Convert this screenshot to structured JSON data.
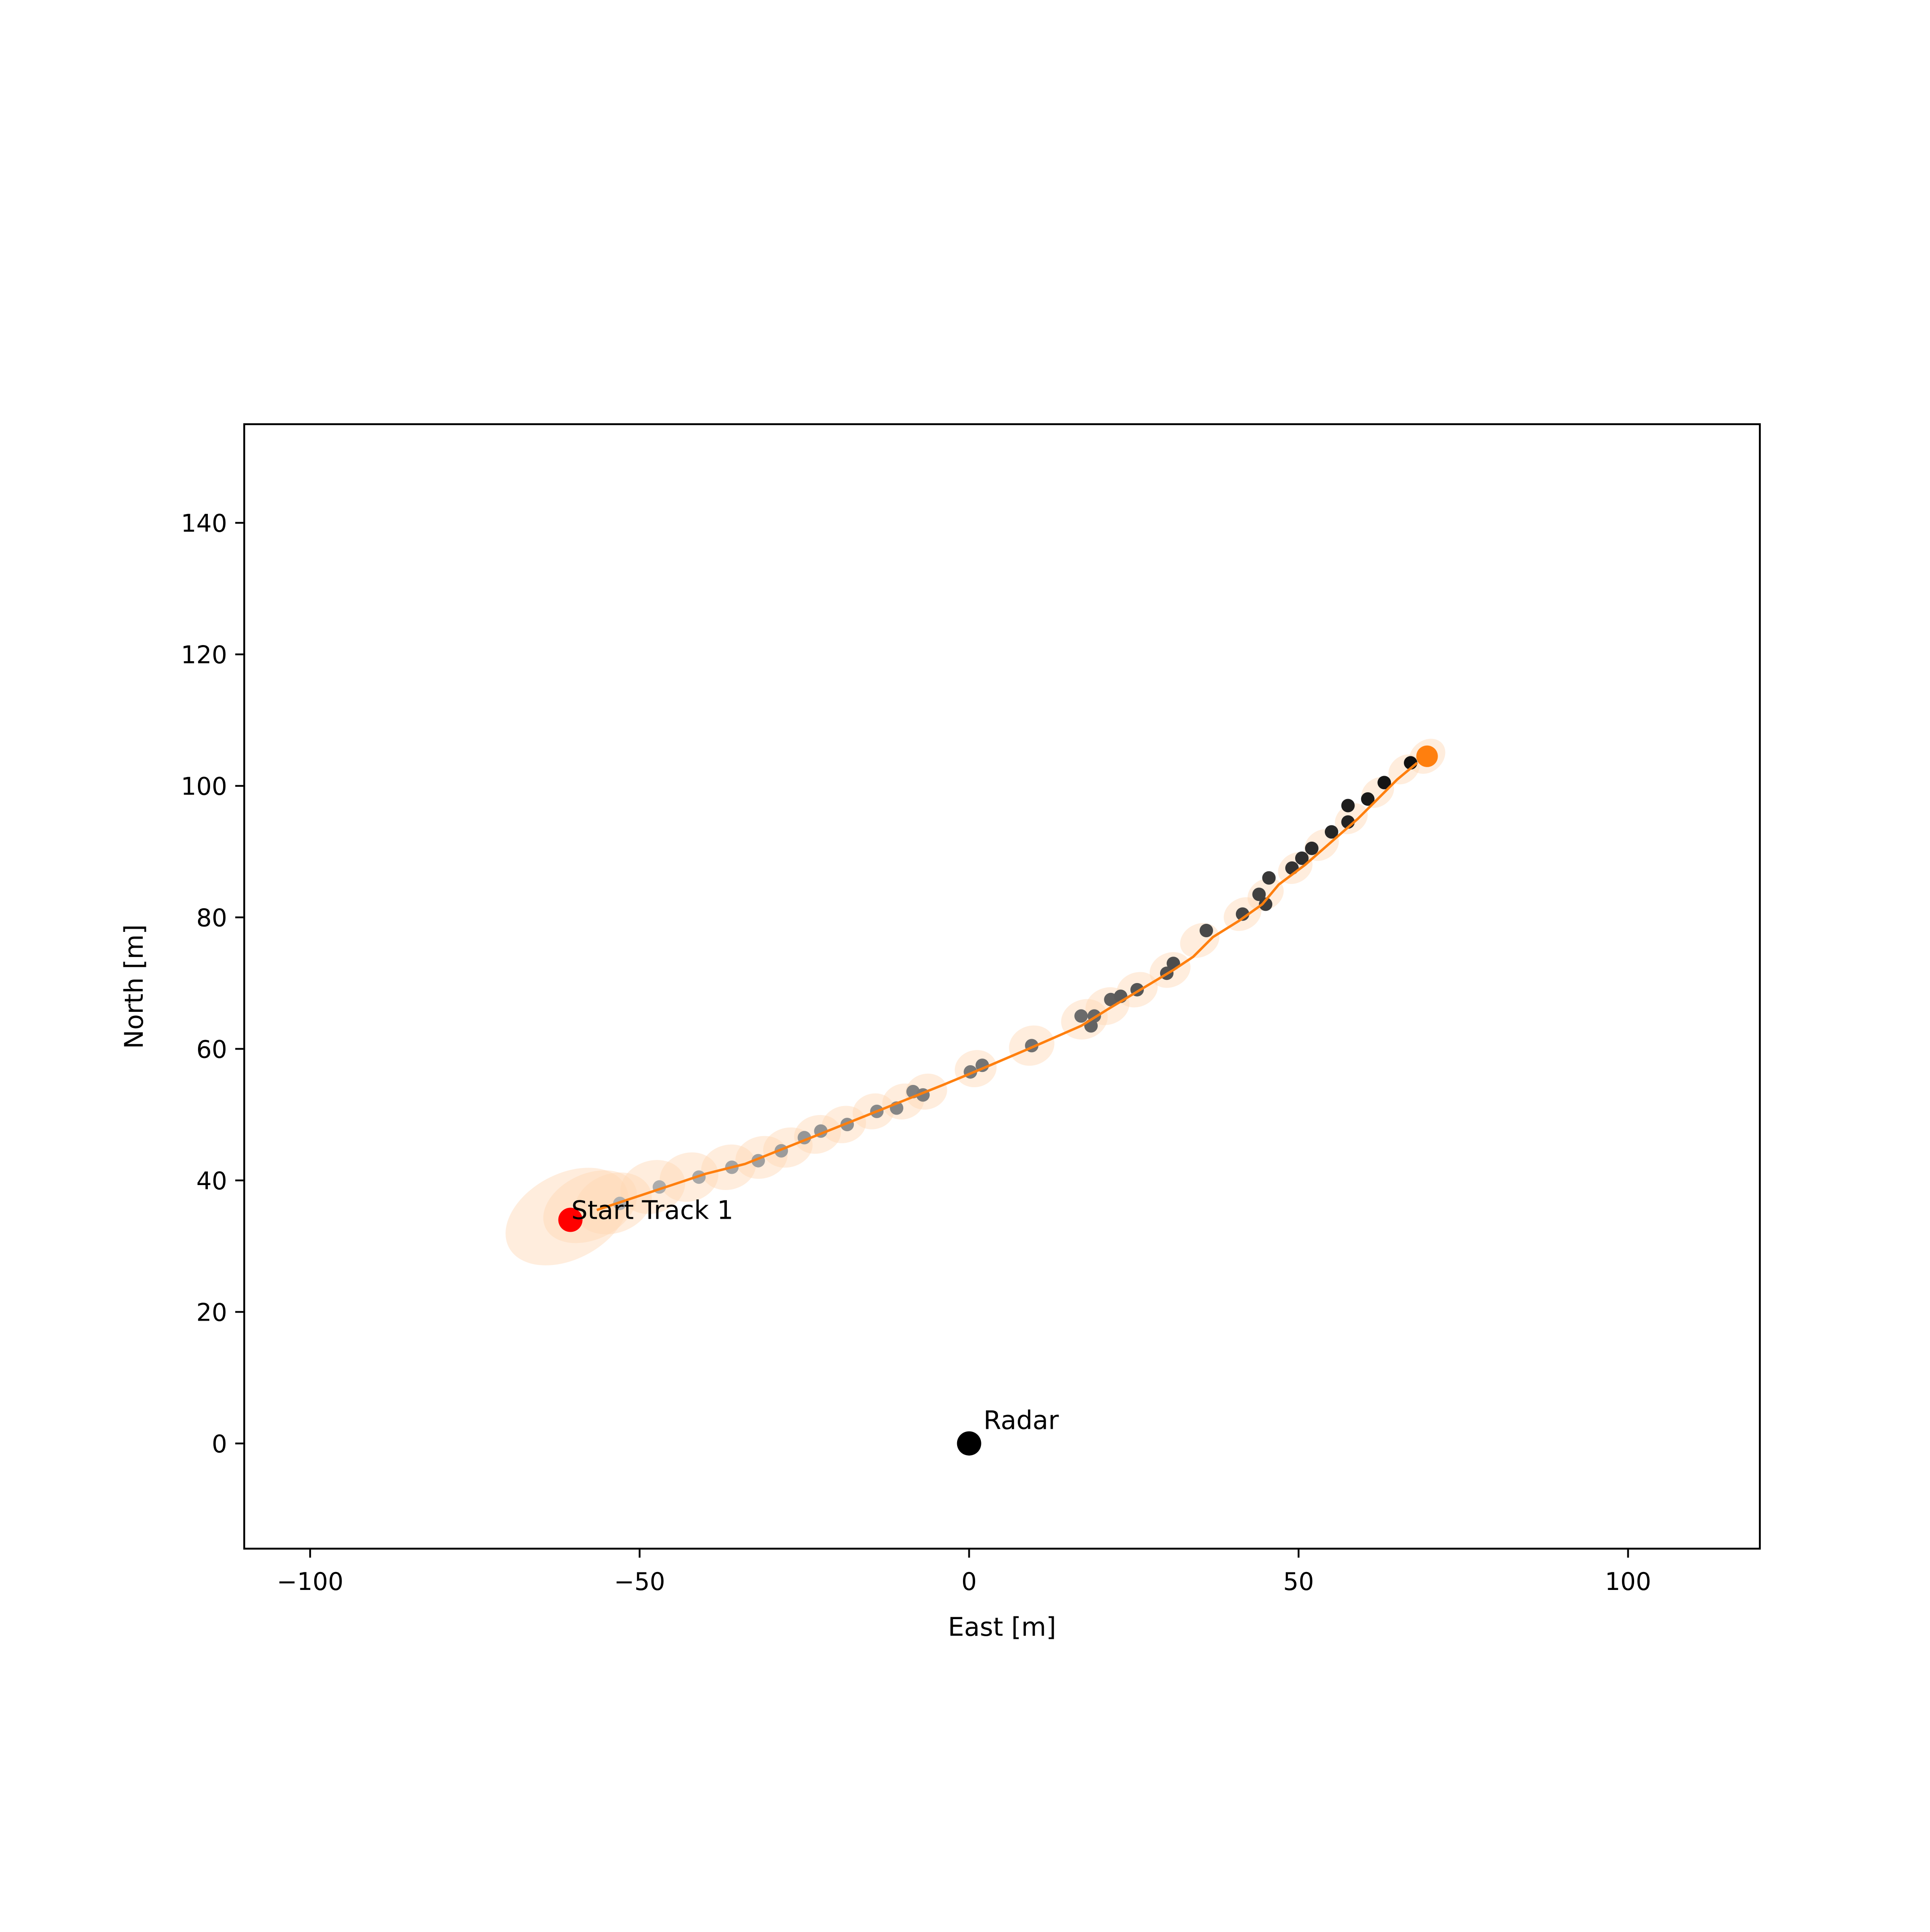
{
  "chart_data": {
    "type": "scatter",
    "title": "",
    "xlabel": "East [m]",
    "ylabel": "North [m]",
    "xlim": [
      -110,
      120
    ],
    "ylim": [
      -16,
      155
    ],
    "xticks": [
      -100,
      -50,
      0,
      50,
      100
    ],
    "xtick_labels": [
      "−100",
      "−50",
      "0",
      "50",
      "100"
    ],
    "yticks": [
      0,
      20,
      40,
      60,
      80,
      100,
      120,
      140
    ],
    "ytick_labels": [
      "0",
      "20",
      "40",
      "60",
      "80",
      "100",
      "120",
      "140"
    ],
    "grid": false,
    "legend": "none",
    "colors": {
      "track": "#ff7f0e",
      "ellipse": "#ffd7b4",
      "start": "#ff0000",
      "radar": "#000000",
      "measurement_early": "#b0b0b0",
      "measurement_late": "#111111"
    },
    "radar": {
      "x": 0,
      "y": 0,
      "label": "Radar"
    },
    "track_start": {
      "x": -60.5,
      "y": 34,
      "label": "Start Track 1"
    },
    "track_end": {
      "x": 69.5,
      "y": 104.5
    },
    "measurements": [
      {
        "x": -53,
        "y": 36.5
      },
      {
        "x": -47,
        "y": 39
      },
      {
        "x": -41,
        "y": 40.5
      },
      {
        "x": -36,
        "y": 42
      },
      {
        "x": -32,
        "y": 43
      },
      {
        "x": -28.5,
        "y": 44.5
      },
      {
        "x": -25,
        "y": 46.5
      },
      {
        "x": -22.5,
        "y": 47.5
      },
      {
        "x": -18.5,
        "y": 48.5
      },
      {
        "x": -14,
        "y": 50.5
      },
      {
        "x": -11,
        "y": 51
      },
      {
        "x": -8.5,
        "y": 53.5
      },
      {
        "x": -7,
        "y": 53
      },
      {
        "x": 0.2,
        "y": 56.5
      },
      {
        "x": 2,
        "y": 57.5
      },
      {
        "x": 9.5,
        "y": 60.5
      },
      {
        "x": 17,
        "y": 65
      },
      {
        "x": 19,
        "y": 65
      },
      {
        "x": 18.5,
        "y": 63.5
      },
      {
        "x": 21.5,
        "y": 67.5
      },
      {
        "x": 23,
        "y": 68
      },
      {
        "x": 25.5,
        "y": 69
      },
      {
        "x": 30,
        "y": 71.5
      },
      {
        "x": 31,
        "y": 73
      },
      {
        "x": 36,
        "y": 78
      },
      {
        "x": 41.5,
        "y": 80.5
      },
      {
        "x": 44,
        "y": 83.5
      },
      {
        "x": 45,
        "y": 82
      },
      {
        "x": 45.5,
        "y": 86
      },
      {
        "x": 49,
        "y": 87.5
      },
      {
        "x": 50.5,
        "y": 89
      },
      {
        "x": 52,
        "y": 90.5
      },
      {
        "x": 55,
        "y": 93
      },
      {
        "x": 57.5,
        "y": 94.5
      },
      {
        "x": 57.5,
        "y": 97
      },
      {
        "x": 60.5,
        "y": 98
      },
      {
        "x": 63,
        "y": 100.5
      },
      {
        "x": 67,
        "y": 103.5
      }
    ],
    "track": [
      {
        "x": -56.5,
        "y": 35.5
      },
      {
        "x": -52,
        "y": 37
      },
      {
        "x": -46,
        "y": 39
      },
      {
        "x": -40,
        "y": 41
      },
      {
        "x": -34,
        "y": 42.5
      },
      {
        "x": -29,
        "y": 44.5
      },
      {
        "x": -24,
        "y": 46.5
      },
      {
        "x": -19,
        "y": 48.5
      },
      {
        "x": -14,
        "y": 50.5
      },
      {
        "x": -9,
        "y": 52.5
      },
      {
        "x": -4,
        "y": 54.5
      },
      {
        "x": 2,
        "y": 57
      },
      {
        "x": 9,
        "y": 60
      },
      {
        "x": 17,
        "y": 63.5
      },
      {
        "x": 21,
        "y": 66
      },
      {
        "x": 26,
        "y": 69
      },
      {
        "x": 31,
        "y": 72
      },
      {
        "x": 34,
        "y": 74
      },
      {
        "x": 37,
        "y": 77
      },
      {
        "x": 41,
        "y": 79.5
      },
      {
        "x": 44.5,
        "y": 82
      },
      {
        "x": 47,
        "y": 85
      },
      {
        "x": 51,
        "y": 88
      },
      {
        "x": 55,
        "y": 91.5
      },
      {
        "x": 59,
        "y": 95
      },
      {
        "x": 62,
        "y": 98
      },
      {
        "x": 65,
        "y": 101
      },
      {
        "x": 68,
        "y": 103.5
      }
    ],
    "covariance_ellipses": [
      {
        "x": -61,
        "y": 34.5,
        "rx": 10,
        "ry": 6.5,
        "angle": -28
      },
      {
        "x": -57.5,
        "y": 36,
        "rx": 7.5,
        "ry": 5,
        "angle": -25
      },
      {
        "x": -54,
        "y": 36.5,
        "rx": 6,
        "ry": 4.5,
        "angle": -20
      },
      {
        "x": -48,
        "y": 39,
        "rx": 5,
        "ry": 4,
        "angle": -18
      },
      {
        "x": -42.5,
        "y": 40.5,
        "rx": 4.5,
        "ry": 3.7,
        "angle": -15
      },
      {
        "x": -36.5,
        "y": 42,
        "rx": 4.2,
        "ry": 3.4,
        "angle": -15
      },
      {
        "x": -31.5,
        "y": 43.5,
        "rx": 4,
        "ry": 3.2,
        "angle": -15
      },
      {
        "x": -27.5,
        "y": 45,
        "rx": 3.8,
        "ry": 3,
        "angle": -15
      },
      {
        "x": -23,
        "y": 47,
        "rx": 3.6,
        "ry": 2.9,
        "angle": -15
      },
      {
        "x": -19,
        "y": 48.5,
        "rx": 3.4,
        "ry": 2.8,
        "angle": -15
      },
      {
        "x": -14.5,
        "y": 50.5,
        "rx": 3.2,
        "ry": 2.7,
        "angle": -15
      },
      {
        "x": -10,
        "y": 52,
        "rx": 3.2,
        "ry": 2.7,
        "angle": -15
      },
      {
        "x": -6.5,
        "y": 53.5,
        "rx": 3.2,
        "ry": 2.7,
        "angle": -15
      },
      {
        "x": 1,
        "y": 57,
        "rx": 3.2,
        "ry": 2.8,
        "angle": -15
      },
      {
        "x": 9.5,
        "y": 60.5,
        "rx": 3.5,
        "ry": 3,
        "angle": -20
      },
      {
        "x": 17.5,
        "y": 64.5,
        "rx": 3.6,
        "ry": 3,
        "angle": -20
      },
      {
        "x": 21,
        "y": 66.5,
        "rx": 3.4,
        "ry": 2.8,
        "angle": -20
      },
      {
        "x": 25.5,
        "y": 69,
        "rx": 3.2,
        "ry": 2.6,
        "angle": -22
      },
      {
        "x": 30.5,
        "y": 72,
        "rx": 3.2,
        "ry": 2.6,
        "angle": -25
      },
      {
        "x": 35,
        "y": 76.5,
        "rx": 3.1,
        "ry": 2.5,
        "angle": -28
      },
      {
        "x": 41.5,
        "y": 80.5,
        "rx": 3,
        "ry": 2.4,
        "angle": -30
      },
      {
        "x": 45,
        "y": 83.5,
        "rx": 2.9,
        "ry": 2.3,
        "angle": -32
      },
      {
        "x": 49.5,
        "y": 87.5,
        "rx": 2.8,
        "ry": 2.2,
        "angle": -35
      },
      {
        "x": 53.5,
        "y": 91,
        "rx": 2.8,
        "ry": 2.2,
        "angle": -35
      },
      {
        "x": 58,
        "y": 95,
        "rx": 2.7,
        "ry": 2.1,
        "angle": -38
      },
      {
        "x": 62,
        "y": 99,
        "rx": 2.7,
        "ry": 2.1,
        "angle": -38
      },
      {
        "x": 66,
        "y": 102.5,
        "rx": 2.6,
        "ry": 2,
        "angle": -40
      },
      {
        "x": 69.5,
        "y": 104.5,
        "rx": 3,
        "ry": 2.4,
        "angle": -40
      }
    ]
  }
}
